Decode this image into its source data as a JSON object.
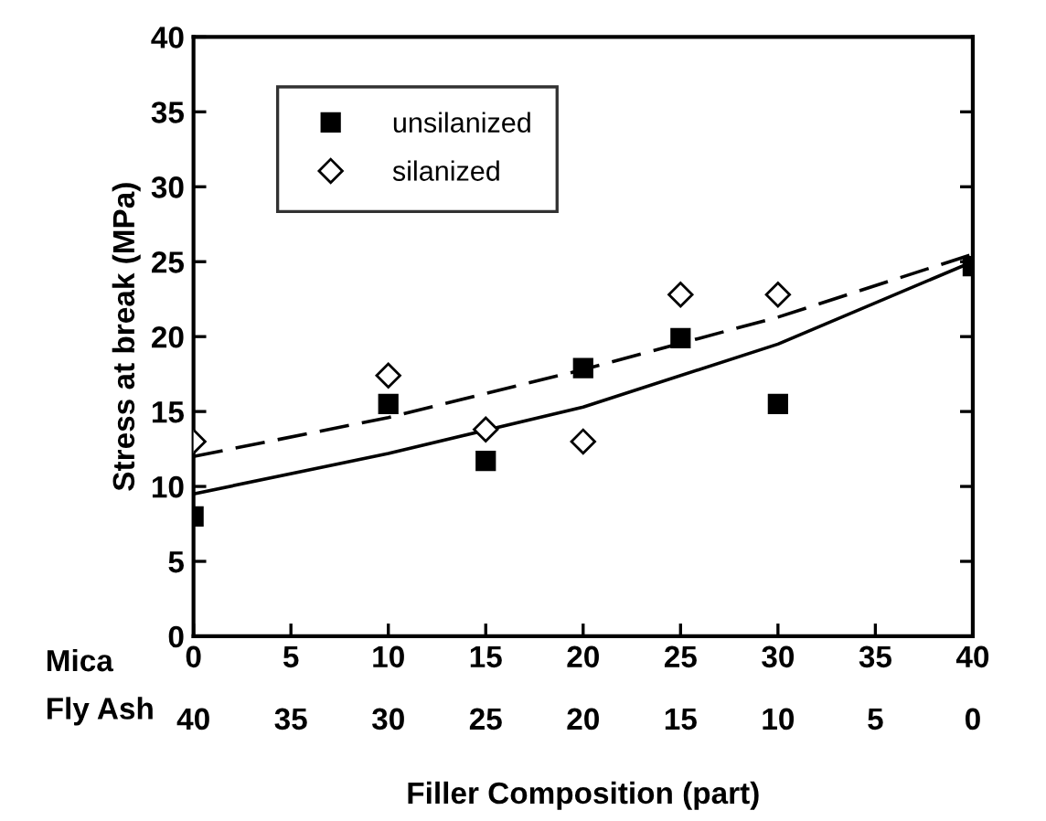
{
  "chart_data": {
    "type": "scatter",
    "xlabel": "Filler Composition (part)",
    "ylabel": "Stress at break (MPa)",
    "xlim": [
      0,
      40
    ],
    "xticks": [
      0,
      5,
      10,
      15,
      20,
      25,
      30,
      35,
      40
    ],
    "ylim": [
      0,
      40
    ],
    "yticks": [
      0,
      5,
      10,
      15,
      20,
      25,
      30,
      35,
      40
    ],
    "x2lim": [
      40,
      0
    ],
    "x2ticks": [
      40,
      35,
      30,
      25,
      20,
      15,
      10,
      5,
      0
    ],
    "annotations": [
      "Mica",
      "Fly Ash"
    ],
    "legend": "top left",
    "grid": false,
    "series": [
      {
        "name": "unsilanized",
        "color": "#000000",
        "marker": "square",
        "x": [
          0,
          10,
          15,
          20,
          25,
          30,
          40
        ],
        "values": [
          8,
          15.5,
          11.7,
          17.9,
          19.9,
          15.5,
          24.7
        ]
      },
      {
        "name": "silanized",
        "color": "#000000",
        "marker": "diamond",
        "x": [
          0,
          10,
          15,
          20,
          25,
          30
        ],
        "values": [
          13,
          17.4,
          13.8,
          13,
          22.8,
          22.8
        ]
      },
      {
        "type": "line",
        "color": "#000000",
        "line_style": "solid",
        "x": [
          0,
          10,
          20,
          30,
          40
        ],
        "values": [
          9.5,
          12.2,
          15.3,
          19.5,
          25
        ]
      },
      {
        "type": "line",
        "color": "#000000",
        "line_style": "dashed",
        "x": [
          0,
          10,
          20,
          30,
          40
        ],
        "values": [
          12,
          14.6,
          17.8,
          21.3,
          25.5
        ]
      }
    ]
  }
}
